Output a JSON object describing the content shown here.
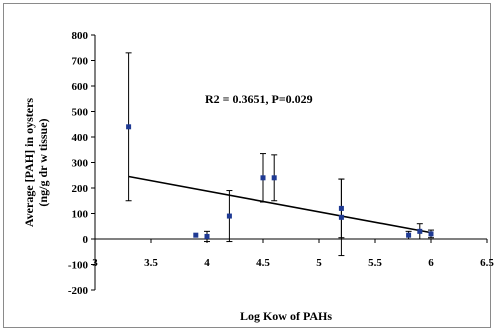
{
  "chart_data": {
    "type": "scatter",
    "xlabel": "Log Kow of PAHs",
    "ylabel": [
      "Average [PAH] in oysters",
      "(ng/g dr w tissue)"
    ],
    "annotation": "R2 = 0.3651, P=0.029",
    "xlim": [
      3,
      6.5
    ],
    "ylim": [
      -200,
      800
    ],
    "x_ticks": [
      3,
      3.5,
      4,
      4.5,
      5,
      5.5,
      6,
      6.5
    ],
    "x_tick_labels": [
      "3",
      "3.5",
      "4",
      "4.5",
      "5",
      "5.5",
      "6",
      "6.5"
    ],
    "y_ticks": [
      -200,
      -100,
      0,
      100,
      200,
      300,
      400,
      500,
      600,
      700,
      800
    ],
    "grid": false,
    "marker_color": "#1f3a93",
    "points": [
      {
        "x": 3.3,
        "y": 440,
        "err": 290
      },
      {
        "x": 3.9,
        "y": 15,
        "err": 0
      },
      {
        "x": 4.0,
        "y": 10,
        "err": 20
      },
      {
        "x": 4.2,
        "y": 90,
        "err": 100
      },
      {
        "x": 4.5,
        "y": 240,
        "err": 95
      },
      {
        "x": 4.6,
        "y": 240,
        "err": 90
      },
      {
        "x": 5.2,
        "y": 120,
        "err": 115
      },
      {
        "x": 5.2,
        "y": 85,
        "err": 150
      },
      {
        "x": 5.8,
        "y": 15,
        "err": 15
      },
      {
        "x": 5.9,
        "y": 30,
        "err": 30
      },
      {
        "x": 6.0,
        "y": 20,
        "err": 15
      }
    ],
    "trendline": {
      "x": [
        3.3,
        6.0
      ],
      "y": [
        245,
        25
      ]
    }
  }
}
